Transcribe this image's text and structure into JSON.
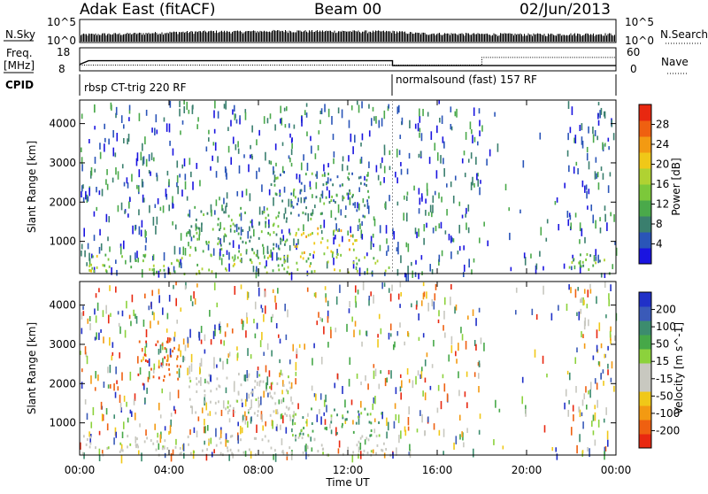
{
  "header": {
    "station": "Adak East (fitACF)",
    "beam": "Beam 00",
    "date": "02/Jun/2013"
  },
  "strip_labels": {
    "nsky": "N.Sky",
    "nsky_tick_hi": "10^5",
    "nsky_tick_lo": "10^0",
    "nsearch": "N.Search",
    "nsearch_tick_hi": "10^5",
    "nsearch_tick_lo": "10^0",
    "freq_line1": "Freq.",
    "freq_line2": "[MHz]",
    "freq_tick_hi": "18",
    "freq_tick_lo": "8",
    "nave": "Nave",
    "nave_tick_hi": "60",
    "nave_tick_lo": "0",
    "cpid": "CPID"
  },
  "cpid_segments": [
    "rbsp CT-trig 220 RF",
    "normalsound (fast) 157 RF"
  ],
  "chart_data": [
    {
      "type": "line",
      "panel": "N.Sky / N.Search",
      "yscale": "log",
      "ylim": [
        1,
        100000
      ],
      "xlim": [
        0,
        24
      ],
      "series": [
        {
          "name": "N.Sky",
          "x": [
            0,
            1,
            2,
            3,
            4,
            5,
            6,
            7,
            8,
            9,
            10,
            11,
            12,
            13,
            14,
            15,
            16,
            17,
            18,
            19,
            20,
            21,
            22,
            23,
            24
          ],
          "values": [
            30,
            40,
            45,
            60,
            90,
            120,
            150,
            140,
            160,
            200,
            180,
            170,
            160,
            150,
            140,
            60,
            50,
            45,
            40,
            40,
            35,
            35,
            40,
            40,
            40
          ]
        }
      ]
    },
    {
      "type": "line",
      "panel": "Freq. / Nave",
      "xlim": [
        0,
        24
      ],
      "series": [
        {
          "name": "Freq. [MHz]",
          "ylim": [
            8,
            18
          ],
          "x": [
            0,
            0.4,
            14.0,
            14.0,
            24
          ],
          "values": [
            10.8,
            12.4,
            12.4,
            10.3,
            10.3
          ]
        },
        {
          "name": "Nave",
          "ylim": [
            0,
            60
          ],
          "x": [
            0,
            18.0,
            18.0,
            24
          ],
          "values": [
            15,
            15,
            35,
            35
          ]
        }
      ]
    },
    {
      "type": "heatmap",
      "panel": "Power",
      "ylabel": "Slant Range [km]",
      "yticks": [
        "1000",
        "2000",
        "3000",
        "4000"
      ],
      "ylim": [
        180,
        4600
      ],
      "xlim": [
        0,
        24
      ],
      "colorbar": {
        "label": "Power [dB]",
        "ticks": [
          "4",
          "8",
          "12",
          "16",
          "20",
          "24",
          "28"
        ],
        "range": [
          0,
          30
        ],
        "colors": [
          "#1a14e0",
          "#2a55b8",
          "#3a7f6e",
          "#4aa94a",
          "#7cc83a",
          "#b0d232",
          "#f0c818",
          "#f39a12",
          "#ef6010",
          "#e82810"
        ]
      },
      "regions": [
        {
          "t0": 0.1,
          "t1": 14.0,
          "r0": 200,
          "r1": 700,
          "level": 14
        },
        {
          "t0": 4.8,
          "t1": 9.5,
          "r0": 700,
          "r1": 1900,
          "level": 10
        },
        {
          "t0": 9.5,
          "t1": 12.5,
          "r0": 700,
          "r1": 1400,
          "level": 18
        },
        {
          "t0": 8.5,
          "t1": 13.0,
          "r0": 1600,
          "r1": 2800,
          "level": 8
        },
        {
          "t0": 21.8,
          "t1": 24,
          "r0": 200,
          "r1": 700,
          "level": 12
        }
      ]
    },
    {
      "type": "heatmap",
      "panel": "Velocity",
      "ylabel": "Slant Range [km]",
      "yticks": [
        "1000",
        "2000",
        "3000",
        "4000"
      ],
      "ylim": [
        180,
        4600
      ],
      "xlim": [
        0,
        24
      ],
      "xticks": [
        "00:00",
        "04:00",
        "08:00",
        "12:00",
        "16:00",
        "20:00",
        "00:00"
      ],
      "xlabel": "Time UT",
      "colorbar": {
        "label": "Velocity [m s^-1]",
        "ticks": [
          "200",
          "100",
          "50",
          "15",
          "-15",
          "-50",
          "-100",
          "-200"
        ],
        "colors": [
          "#2030c8",
          "#3a5ab8",
          "#3c8c6e",
          "#46a848",
          "#8cd23c",
          "#c8c8c0",
          "#c8c8c0",
          "#f0c818",
          "#f39a12",
          "#ef6010",
          "#e82810"
        ]
      },
      "regions": [
        {
          "t0": 0.1,
          "t1": 14.0,
          "r0": 200,
          "r1": 700,
          "vel": 0
        },
        {
          "t0": 4.8,
          "t1": 9.5,
          "r0": 1200,
          "r1": 2300,
          "vel": 0
        },
        {
          "t0": 9.5,
          "t1": 13.5,
          "r0": 700,
          "r1": 1400,
          "vel": 60
        },
        {
          "t0": 2.5,
          "t1": 4.5,
          "r0": 2000,
          "r1": 3200,
          "vel": -120
        }
      ]
    }
  ]
}
